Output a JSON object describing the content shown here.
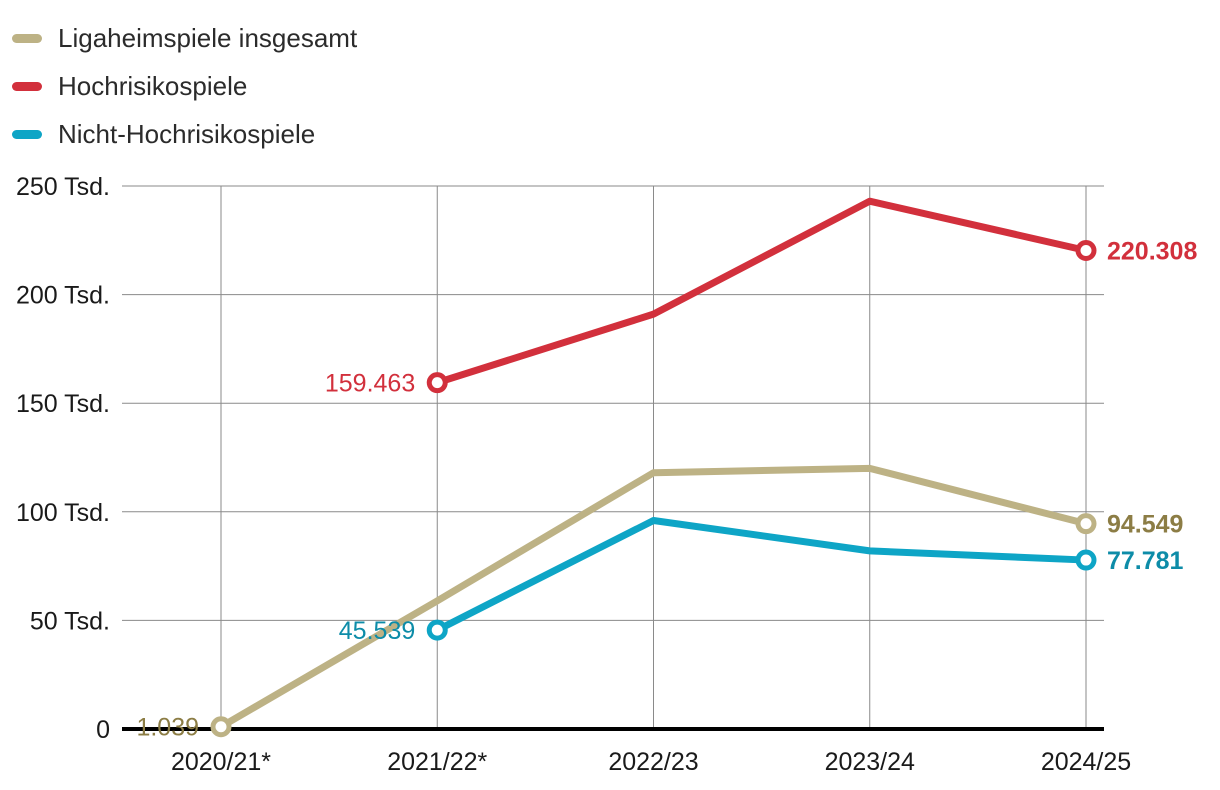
{
  "chart_data": {
    "type": "line",
    "categories": [
      "2020/21*",
      "2021/22*",
      "2022/23",
      "2023/24",
      "2024/25"
    ],
    "ylim": [
      0,
      250000
    ],
    "yticks": [
      {
        "value": 0,
        "label": "0"
      },
      {
        "value": 50000,
        "label": "50 Tsd."
      },
      {
        "value": 100000,
        "label": "100 Tsd."
      },
      {
        "value": 150000,
        "label": "150 Tsd."
      },
      {
        "value": 200000,
        "label": "200 Tsd."
      },
      {
        "value": 250000,
        "label": "250 Tsd."
      }
    ],
    "grid": true,
    "legend_position": "top-left",
    "series": [
      {
        "name": "Ligaheimspiele insgesamt",
        "color": "#bdb285",
        "label_color": "#8c7d45",
        "values": [
          1039,
          59000,
          118000,
          120000,
          94549
        ],
        "start_index": 0,
        "start_label": "1.039",
        "end_label": "94.549"
      },
      {
        "name": "Hochrisikospiele",
        "color": "#d2303c",
        "label_color": "#d2303c",
        "values": [
          null,
          159463,
          191000,
          243000,
          220308
        ],
        "start_index": 1,
        "start_label": "159.463",
        "end_label": "220.308"
      },
      {
        "name": "Nicht-Hochrisikospiele",
        "color": "#0ea5c6",
        "label_color": "#0d8ca8",
        "values": [
          null,
          45539,
          96000,
          82000,
          77781
        ],
        "start_index": 1,
        "start_label": "45.539",
        "end_label": "77.781"
      }
    ]
  }
}
